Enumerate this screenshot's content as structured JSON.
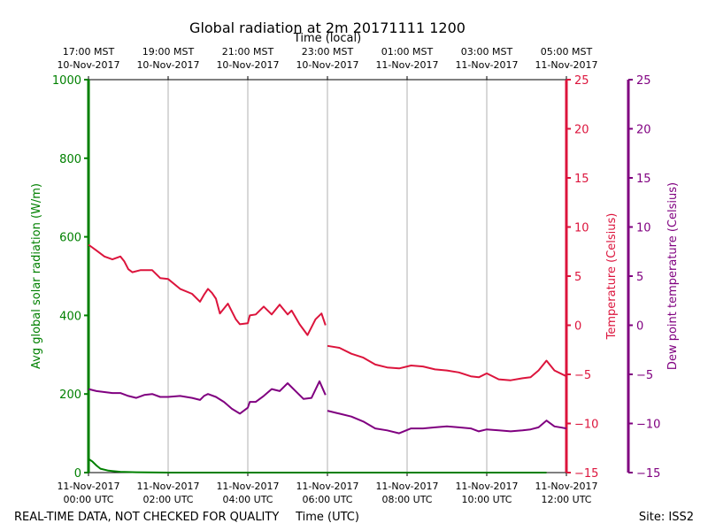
{
  "chart_data": {
    "type": "line",
    "title": "Global radiation at 2m 20171111 1200",
    "top_axis_label": "Time (local)",
    "xlabel": "Time (UTC)",
    "footer_left": "REAL-TIME DATA, NOT CHECKED FOR QUALITY",
    "footer_right": "Site: ISS2",
    "xlim": [
      0,
      12
    ],
    "bottom_ticks": [
      {
        "x": 0,
        "line1": "11-Nov-2017",
        "line2": "00:00 UTC"
      },
      {
        "x": 2,
        "line1": "11-Nov-2017",
        "line2": "02:00 UTC"
      },
      {
        "x": 4,
        "line1": "11-Nov-2017",
        "line2": "04:00 UTC"
      },
      {
        "x": 6,
        "line1": "11-Nov-2017",
        "line2": "06:00 UTC"
      },
      {
        "x": 8,
        "line1": "11-Nov-2017",
        "line2": "08:00 UTC"
      },
      {
        "x": 10,
        "line1": "11-Nov-2017",
        "line2": "10:00 UTC"
      },
      {
        "x": 12,
        "line1": "11-Nov-2017",
        "line2": "12:00 UTC"
      }
    ],
    "top_ticks": [
      {
        "x": 0,
        "line1": "17:00 MST",
        "line2": "10-Nov-2017"
      },
      {
        "x": 2,
        "line1": "19:00 MST",
        "line2": "10-Nov-2017"
      },
      {
        "x": 4,
        "line1": "21:00 MST",
        "line2": "10-Nov-2017"
      },
      {
        "x": 6,
        "line1": "23:00 MST",
        "line2": "10-Nov-2017"
      },
      {
        "x": 8,
        "line1": "01:00 MST",
        "line2": "11-Nov-2017"
      },
      {
        "x": 10,
        "line1": "03:00 MST",
        "line2": "11-Nov-2017"
      },
      {
        "x": 12,
        "line1": "05:00 MST",
        "line2": "11-Nov-2017"
      }
    ],
    "axes": {
      "radiation": {
        "label": "Avg global solar radiation (W/m)",
        "ylim": [
          0,
          1000
        ],
        "ticks": [
          0,
          200,
          400,
          600,
          800,
          1000
        ],
        "color": "#008000"
      },
      "temperature": {
        "label": "Temperature (Celsius)",
        "ylim": [
          -15,
          25
        ],
        "ticks": [
          -15,
          -10,
          -5,
          0,
          5,
          10,
          15,
          20,
          25
        ],
        "color": "#dc143c"
      },
      "dewpoint": {
        "label": "Dew point temperature (Celsius)",
        "ylim": [
          -15,
          25
        ],
        "ticks": [
          -15,
          -10,
          -5,
          0,
          5,
          10,
          15,
          20,
          25
        ],
        "color": "#800080"
      }
    },
    "series": [
      {
        "name": "Avg global solar radiation",
        "axis": "radiation",
        "color": "#008000",
        "x": [
          0,
          0.1,
          0.2,
          0.3,
          0.5,
          0.8,
          1.2,
          2,
          4,
          6,
          8,
          10,
          11.5
        ],
        "y": [
          35,
          28,
          18,
          10,
          5,
          2,
          1,
          0,
          0,
          0,
          0,
          0,
          0
        ]
      },
      {
        "name": "Temperature",
        "axis": "temperature",
        "color": "#dc143c",
        "x": [
          0,
          0.2,
          0.4,
          0.6,
          0.8,
          0.9,
          1.0,
          1.1,
          1.3,
          1.6,
          1.8,
          2.0,
          2.3,
          2.6,
          2.8,
          2.9,
          3.0,
          3.1,
          3.2,
          3.3,
          3.5,
          3.7,
          3.8,
          4.0,
          4.05,
          4.2,
          4.4,
          4.6,
          4.8,
          5.0,
          5.1,
          5.3,
          5.5,
          5.7,
          5.85,
          5.95
        ],
        "y": [
          8.2,
          7.6,
          7.0,
          6.7,
          7.0,
          6.5,
          5.7,
          5.4,
          5.6,
          5.6,
          4.8,
          4.7,
          3.7,
          3.2,
          2.4,
          3.1,
          3.7,
          3.3,
          2.7,
          1.2,
          2.2,
          0.6,
          0.1,
          0.2,
          1.0,
          1.1,
          1.9,
          1.1,
          2.1,
          1.1,
          1.5,
          0.1,
          -1.0,
          0.6,
          1.2,
          0.0
        ]
      },
      {
        "name": "Temperature (after gap)",
        "axis": "temperature",
        "color": "#dc143c",
        "x": [
          6.0,
          6.3,
          6.6,
          6.9,
          7.2,
          7.5,
          7.8,
          8.1,
          8.4,
          8.7,
          9.0,
          9.3,
          9.6,
          9.8,
          10.0,
          10.3,
          10.6,
          10.9,
          11.1,
          11.3,
          11.5,
          11.7,
          12.0
        ],
        "y": [
          -2.1,
          -2.3,
          -2.9,
          -3.3,
          -4.0,
          -4.3,
          -4.4,
          -4.1,
          -4.2,
          -4.5,
          -4.6,
          -4.8,
          -5.2,
          -5.3,
          -4.9,
          -5.5,
          -5.6,
          -5.4,
          -5.3,
          -4.6,
          -3.6,
          -4.6,
          -5.2
        ]
      },
      {
        "name": "Dew point temperature",
        "axis": "dewpoint",
        "color": "#800080",
        "x": [
          0,
          0.2,
          0.4,
          0.6,
          0.8,
          1.0,
          1.2,
          1.4,
          1.6,
          1.8,
          2.0,
          2.3,
          2.6,
          2.8,
          2.9,
          3.0,
          3.2,
          3.4,
          3.6,
          3.8,
          4.0,
          4.05,
          4.2,
          4.4,
          4.6,
          4.8,
          5.0,
          5.2,
          5.4,
          5.6,
          5.8,
          5.95
        ],
        "y": [
          -6.5,
          -6.7,
          -6.8,
          -6.9,
          -6.9,
          -7.2,
          -7.4,
          -7.1,
          -7.0,
          -7.3,
          -7.3,
          -7.2,
          -7.4,
          -7.6,
          -7.2,
          -7.0,
          -7.3,
          -7.8,
          -8.5,
          -9.0,
          -8.4,
          -7.8,
          -7.8,
          -7.2,
          -6.5,
          -6.7,
          -5.9,
          -6.7,
          -7.5,
          -7.4,
          -5.7,
          -7.1
        ]
      },
      {
        "name": "Dew point (after gap)",
        "axis": "dewpoint",
        "color": "#800080",
        "x": [
          6.0,
          6.3,
          6.6,
          6.9,
          7.2,
          7.5,
          7.8,
          8.1,
          8.4,
          8.7,
          9.0,
          9.3,
          9.6,
          9.8,
          10.0,
          10.3,
          10.6,
          10.9,
          11.1,
          11.3,
          11.5,
          11.7,
          12.0
        ],
        "y": [
          -8.7,
          -9.0,
          -9.3,
          -9.8,
          -10.5,
          -10.7,
          -11.0,
          -10.5,
          -10.5,
          -10.4,
          -10.3,
          -10.4,
          -10.5,
          -10.8,
          -10.6,
          -10.7,
          -10.8,
          -10.7,
          -10.6,
          -10.4,
          -9.7,
          -10.3,
          -10.5
        ]
      }
    ]
  }
}
